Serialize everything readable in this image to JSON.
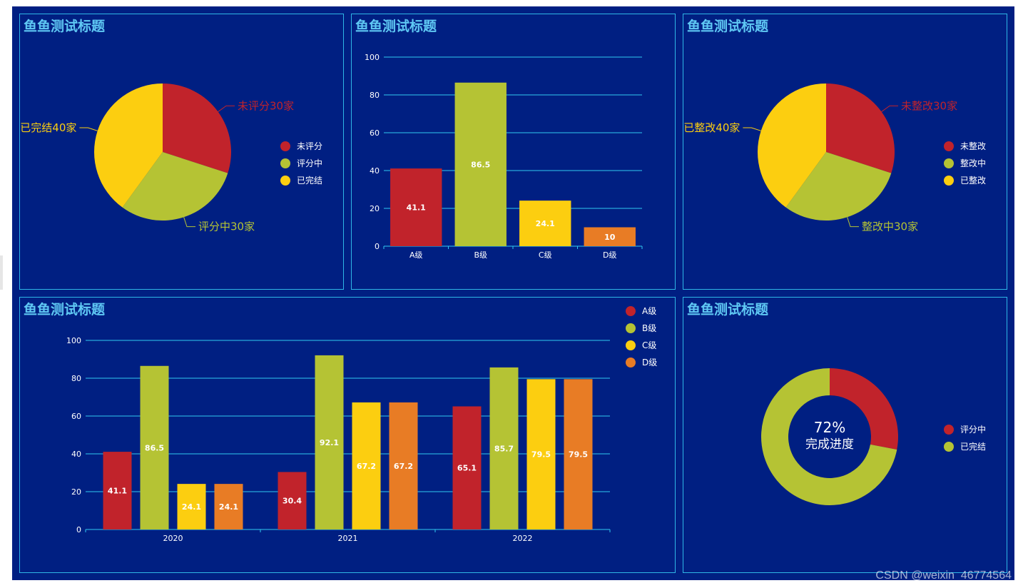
{
  "colors": {
    "red": "#c1232b",
    "green": "#b5c334",
    "yellow": "#fcce10",
    "orange": "#e87c25",
    "background": "#001f82",
    "border": "#2fb6e6",
    "title": "#5fc8f4",
    "grid": "#2fc8f0"
  },
  "watermark": "CSDN @weixin_46774564",
  "chart_data": [
    {
      "id": "pie1",
      "type": "pie",
      "title": "鱼鱼测试标题",
      "slices": [
        {
          "name": "未评分",
          "value": 30,
          "label": "未评分30家",
          "color": "#c1232b"
        },
        {
          "name": "评分中",
          "value": 30,
          "label": "评分中30家",
          "color": "#b5c334"
        },
        {
          "name": "已完结",
          "value": 40,
          "label": "已完结40家",
          "color": "#fcce10"
        }
      ],
      "legend": [
        "未评分",
        "评分中",
        "已完结"
      ],
      "legend_position": "right"
    },
    {
      "id": "bar1",
      "type": "bar",
      "title": "鱼鱼测试标题",
      "categories": [
        "A级",
        "B级",
        "C级",
        "D级"
      ],
      "values": [
        41.1,
        86.5,
        24.1,
        10
      ],
      "colors": [
        "#c1232b",
        "#b5c334",
        "#fcce10",
        "#e87c25"
      ],
      "ylim": [
        0,
        100
      ],
      "yticks": [
        0,
        20,
        40,
        60,
        80,
        100
      ],
      "grid": true
    },
    {
      "id": "pie2",
      "type": "pie",
      "title": "鱼鱼测试标题",
      "slices": [
        {
          "name": "未整改",
          "value": 30,
          "label": "未整改30家",
          "color": "#c1232b"
        },
        {
          "name": "整改中",
          "value": 30,
          "label": "整改中30家",
          "color": "#b5c334"
        },
        {
          "name": "已整改",
          "value": 40,
          "label": "已整改40家",
          "color": "#fcce10"
        }
      ],
      "legend": [
        "未整改",
        "整改中",
        "已整改"
      ],
      "legend_position": "right"
    },
    {
      "id": "bar2",
      "type": "bar",
      "title": "鱼鱼测试标题",
      "categories": [
        "2020",
        "2021",
        "2022"
      ],
      "series": [
        {
          "name": "A级",
          "values": [
            41.1,
            30.4,
            65.1
          ],
          "color": "#c1232b"
        },
        {
          "name": "B级",
          "values": [
            86.5,
            92.1,
            85.7
          ],
          "color": "#b5c334"
        },
        {
          "name": "C级",
          "values": [
            24.1,
            67.2,
            79.5
          ],
          "color": "#fcce10"
        },
        {
          "name": "D级",
          "values": [
            24.1,
            67.2,
            79.5
          ],
          "color": "#e87c25"
        }
      ],
      "ylim": [
        0,
        100
      ],
      "yticks": [
        0,
        20,
        40,
        60,
        80,
        100
      ],
      "grid": true,
      "legend_position": "top-right"
    },
    {
      "id": "donut",
      "type": "pie",
      "title": "鱼鱼测试标题",
      "slices": [
        {
          "name": "评分中",
          "value": 28,
          "color": "#c1232b"
        },
        {
          "name": "已完结",
          "value": 72,
          "color": "#b5c334"
        }
      ],
      "center_value": "72%",
      "center_label": "完成进度",
      "legend": [
        "评分中",
        "已完结"
      ],
      "legend_position": "right"
    }
  ]
}
